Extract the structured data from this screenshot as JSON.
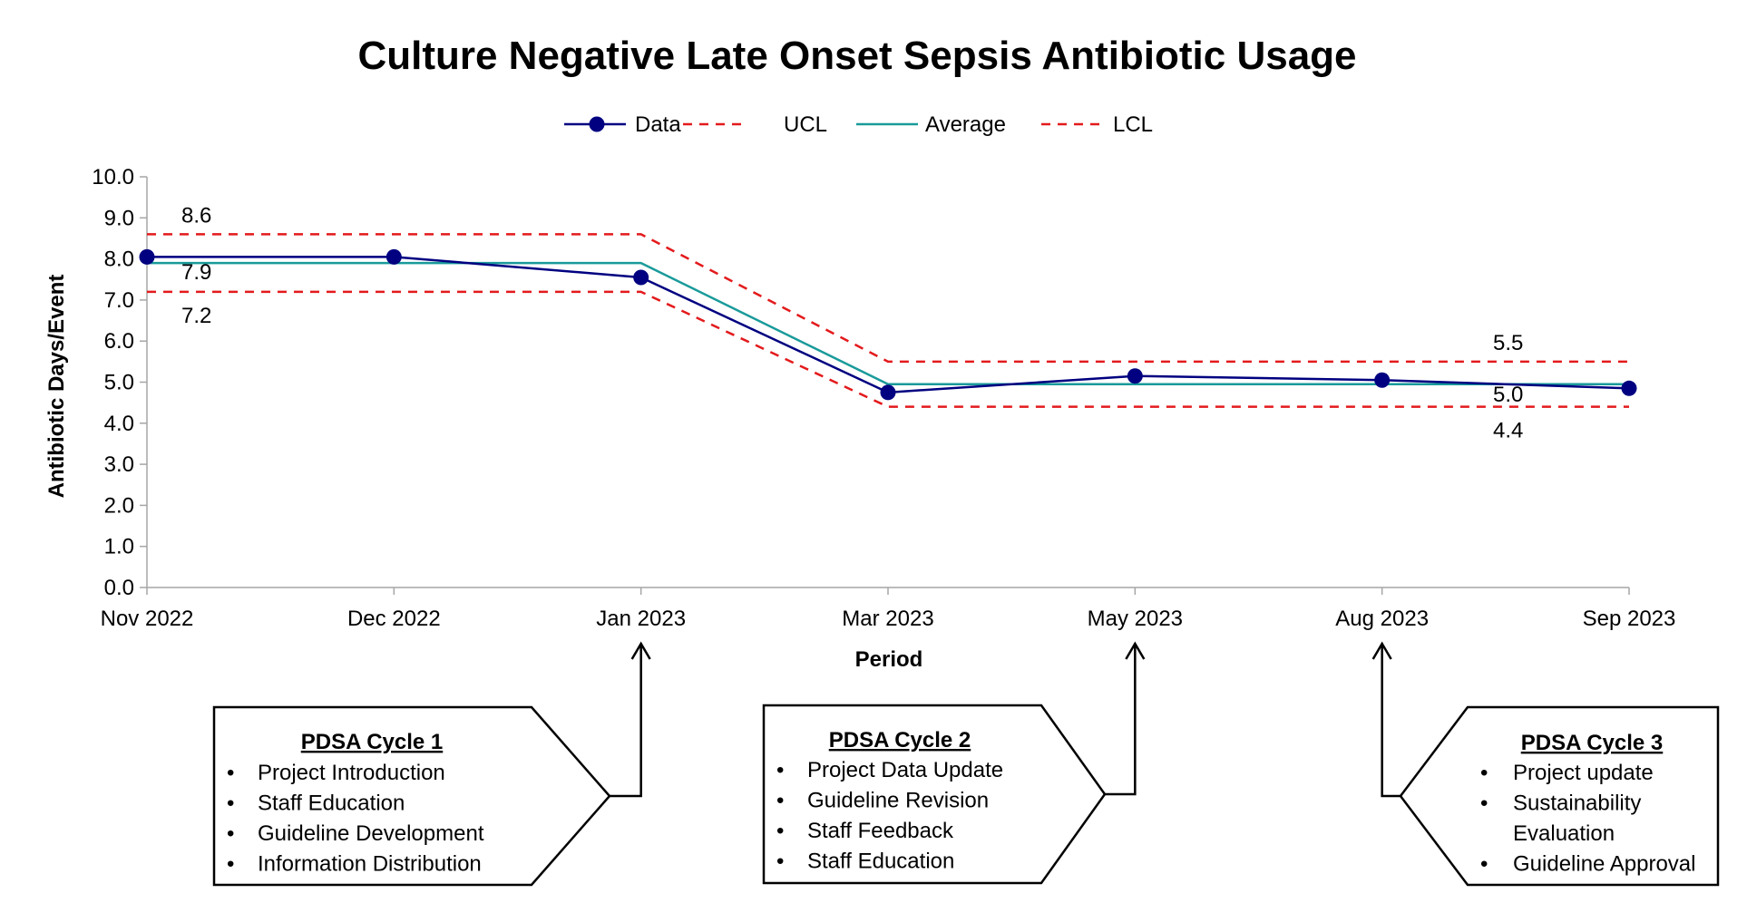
{
  "chart_data": {
    "type": "line",
    "title": "Culture Negative Late Onset Sepsis Antibiotic Usage",
    "xlabel": "Period",
    "ylabel": "Antibiotic Days/Event",
    "categories": [
      "Nov 2022",
      "Dec 2022",
      "Jan 2023",
      "Mar 2023",
      "May 2023",
      "Aug 2023",
      "Sep 2023"
    ],
    "ylim": [
      0,
      10
    ],
    "yticks": [
      "0.0",
      "1.0",
      "2.0",
      "3.0",
      "4.0",
      "5.0",
      "6.0",
      "7.0",
      "8.0",
      "9.0",
      "10.0"
    ],
    "grid": false,
    "legend_position": "top",
    "series": [
      {
        "name": "Data",
        "values": [
          8.05,
          8.05,
          7.55,
          4.75,
          5.15,
          5.05,
          4.85
        ],
        "color": "#000080",
        "style": "solid-markers"
      },
      {
        "name": "UCL",
        "values": [
          8.6,
          8.6,
          8.6,
          5.5,
          5.5,
          5.5,
          5.5
        ],
        "color": "#e31a1c",
        "style": "dashed"
      },
      {
        "name": "Average",
        "values": [
          7.9,
          7.9,
          7.9,
          4.95,
          4.95,
          4.95,
          4.95
        ],
        "color": "#1a9a9a",
        "style": "solid"
      },
      {
        "name": "LCL",
        "values": [
          7.2,
          7.2,
          7.2,
          4.4,
          4.4,
          4.4,
          4.4
        ],
        "color": "#e31a1c",
        "style": "dashed"
      }
    ],
    "limit_labels": [
      {
        "text": "8.6",
        "series": "UCL",
        "phase": 1
      },
      {
        "text": "7.9",
        "series": "Average",
        "phase": 1
      },
      {
        "text": "7.2",
        "series": "LCL",
        "phase": 1
      },
      {
        "text": "5.5",
        "series": "UCL",
        "phase": 2
      },
      {
        "text": "5.0",
        "series": "Average",
        "phase": 2
      },
      {
        "text": "4.4",
        "series": "LCL",
        "phase": 2
      }
    ],
    "annotations": [
      {
        "title": "PDSA Cycle 1",
        "target": "Jan 2023",
        "items": [
          "Project Introduction",
          "Staff Education",
          "Guideline Development",
          "Information Distribution"
        ]
      },
      {
        "title": "PDSA Cycle 2",
        "target": "May 2023",
        "items": [
          "Project Data Update",
          "Guideline Revision",
          "Staff Feedback",
          "Staff Education"
        ]
      },
      {
        "title": "PDSA Cycle 3",
        "target": "Aug 2023",
        "items": [
          "Project update",
          "Sustainability",
          "Evaluation",
          "Guideline Approval"
        ]
      }
    ]
  }
}
